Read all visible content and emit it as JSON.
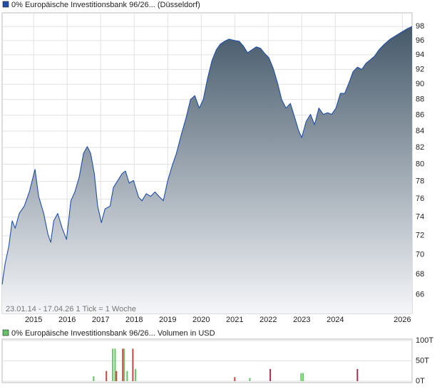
{
  "chart_data": [
    {
      "type": "area",
      "log_scale": true,
      "grid": true,
      "annotation": "23.01.14 - 17.04.26   1 Tick = 1 Woche",
      "xlim": [
        2014.06,
        2026.29
      ],
      "xticks": [
        2015,
        2016,
        2017,
        2018,
        2019,
        2020,
        2021,
        2022,
        2023,
        2024,
        2026
      ],
      "ylim": [
        64.2,
        100
      ],
      "yticks": [
        66,
        68,
        70,
        72,
        74,
        76,
        78,
        80,
        82,
        84,
        86,
        88,
        90,
        92,
        94,
        96,
        98
      ],
      "x": [
        2014.06,
        2014.15,
        2014.26,
        2014.36,
        2014.45,
        2014.57,
        2014.72,
        2014.87,
        2015.04,
        2015.15,
        2015.3,
        2015.43,
        2015.51,
        2015.6,
        2015.72,
        2015.85,
        2015.98,
        2016.11,
        2016.23,
        2016.36,
        2016.49,
        2016.6,
        2016.7,
        2016.81,
        2016.91,
        2017.02,
        2017.13,
        2017.28,
        2017.38,
        2017.51,
        2017.64,
        2017.74,
        2017.85,
        2017.98,
        2018.13,
        2018.23,
        2018.36,
        2018.49,
        2018.62,
        2018.74,
        2018.87,
        2019.0,
        2019.13,
        2019.26,
        2019.4,
        2019.55,
        2019.68,
        2019.81,
        2019.94,
        2020.06,
        2020.19,
        2020.32,
        2020.45,
        2020.57,
        2020.7,
        2020.83,
        2021.0,
        2021.13,
        2021.26,
        2021.38,
        2021.51,
        2021.64,
        2021.77,
        2021.89,
        2022.02,
        2022.15,
        2022.28,
        2022.4,
        2022.53,
        2022.66,
        2022.79,
        2022.91,
        2023.0,
        2023.13,
        2023.26,
        2023.38,
        2023.51,
        2023.64,
        2023.77,
        2023.89,
        2024.02,
        2024.15,
        2024.28,
        2024.4,
        2024.53,
        2024.66,
        2024.79,
        2024.91,
        2025.04,
        2025.17,
        2025.3,
        2025.47,
        2025.64,
        2025.81,
        2025.98,
        2026.15,
        2026.29
      ],
      "series": [
        {
          "name": "0% Europäische Investitionsbank 96/26... (Düsseldorf)",
          "color": "#1f4fa8",
          "fill_top": "#45596a",
          "fill_bottom": "#f5f6f9",
          "values": [
            67.0,
            69.1,
            70.9,
            73.6,
            72.8,
            74.4,
            75.2,
            76.8,
            79.4,
            76.3,
            74.4,
            72.1,
            71.3,
            73.6,
            74.4,
            72.8,
            71.6,
            75.8,
            76.8,
            78.5,
            81.3,
            82.1,
            81.3,
            78.9,
            75.2,
            73.4,
            74.9,
            75.2,
            77.3,
            78.1,
            78.9,
            79.2,
            77.8,
            78.1,
            76.2,
            75.8,
            76.6,
            76.3,
            76.8,
            76.3,
            75.8,
            78.1,
            79.8,
            81.3,
            83.5,
            85.7,
            88.0,
            88.5,
            86.9,
            88.0,
            90.8,
            93.2,
            94.7,
            95.5,
            95.9,
            96.2,
            96.0,
            95.9,
            95.2,
            94.3,
            94.7,
            95.1,
            94.9,
            94.2,
            93.6,
            92.1,
            90.1,
            88.0,
            86.9,
            87.5,
            85.7,
            84.0,
            83.2,
            85.2,
            86.1,
            84.8,
            86.9,
            86.1,
            86.3,
            86.1,
            86.9,
            88.8,
            88.8,
            90.1,
            91.7,
            92.3,
            92.0,
            92.8,
            93.3,
            93.8,
            94.7,
            95.5,
            96.2,
            96.7,
            97.2,
            97.7,
            98.0
          ]
        }
      ]
    },
    {
      "type": "bar",
      "grid": true,
      "xlim": [
        2014.06,
        2026.29
      ],
      "ylim": [
        0,
        100
      ],
      "yticks": [
        {
          "value": 0,
          "label": "0T"
        },
        {
          "value": 50,
          "label": "50T"
        },
        {
          "value": 100,
          "label": "100T"
        }
      ],
      "x": [
        2016.79,
        2017.17,
        2017.36,
        2017.43,
        2017.47,
        2017.66,
        2017.7,
        2017.79,
        2017.96,
        2018.04,
        2021.0,
        2021.45,
        2022.06,
        2022.98,
        2023.04,
        2024.66
      ],
      "series": [
        {
          "name": "0% Europäische Investitionsbank 96/26... Volumen in USD",
          "color": "#66c266",
          "bar_colors": [
            "#66c266",
            "#cc4444",
            "#66c266",
            "#66c266",
            "#cc4444",
            "#cc4444",
            "#66c266",
            "#66c266",
            "#cc4444",
            "#66c266",
            "#cc4444",
            "#66c266",
            "#a03050",
            "#66c266",
            "#66c266",
            "#a03050"
          ],
          "values": [
            12,
            25,
            80,
            80,
            25,
            80,
            80,
            25,
            80,
            30,
            10,
            8,
            30,
            20,
            20,
            30
          ]
        }
      ]
    }
  ]
}
